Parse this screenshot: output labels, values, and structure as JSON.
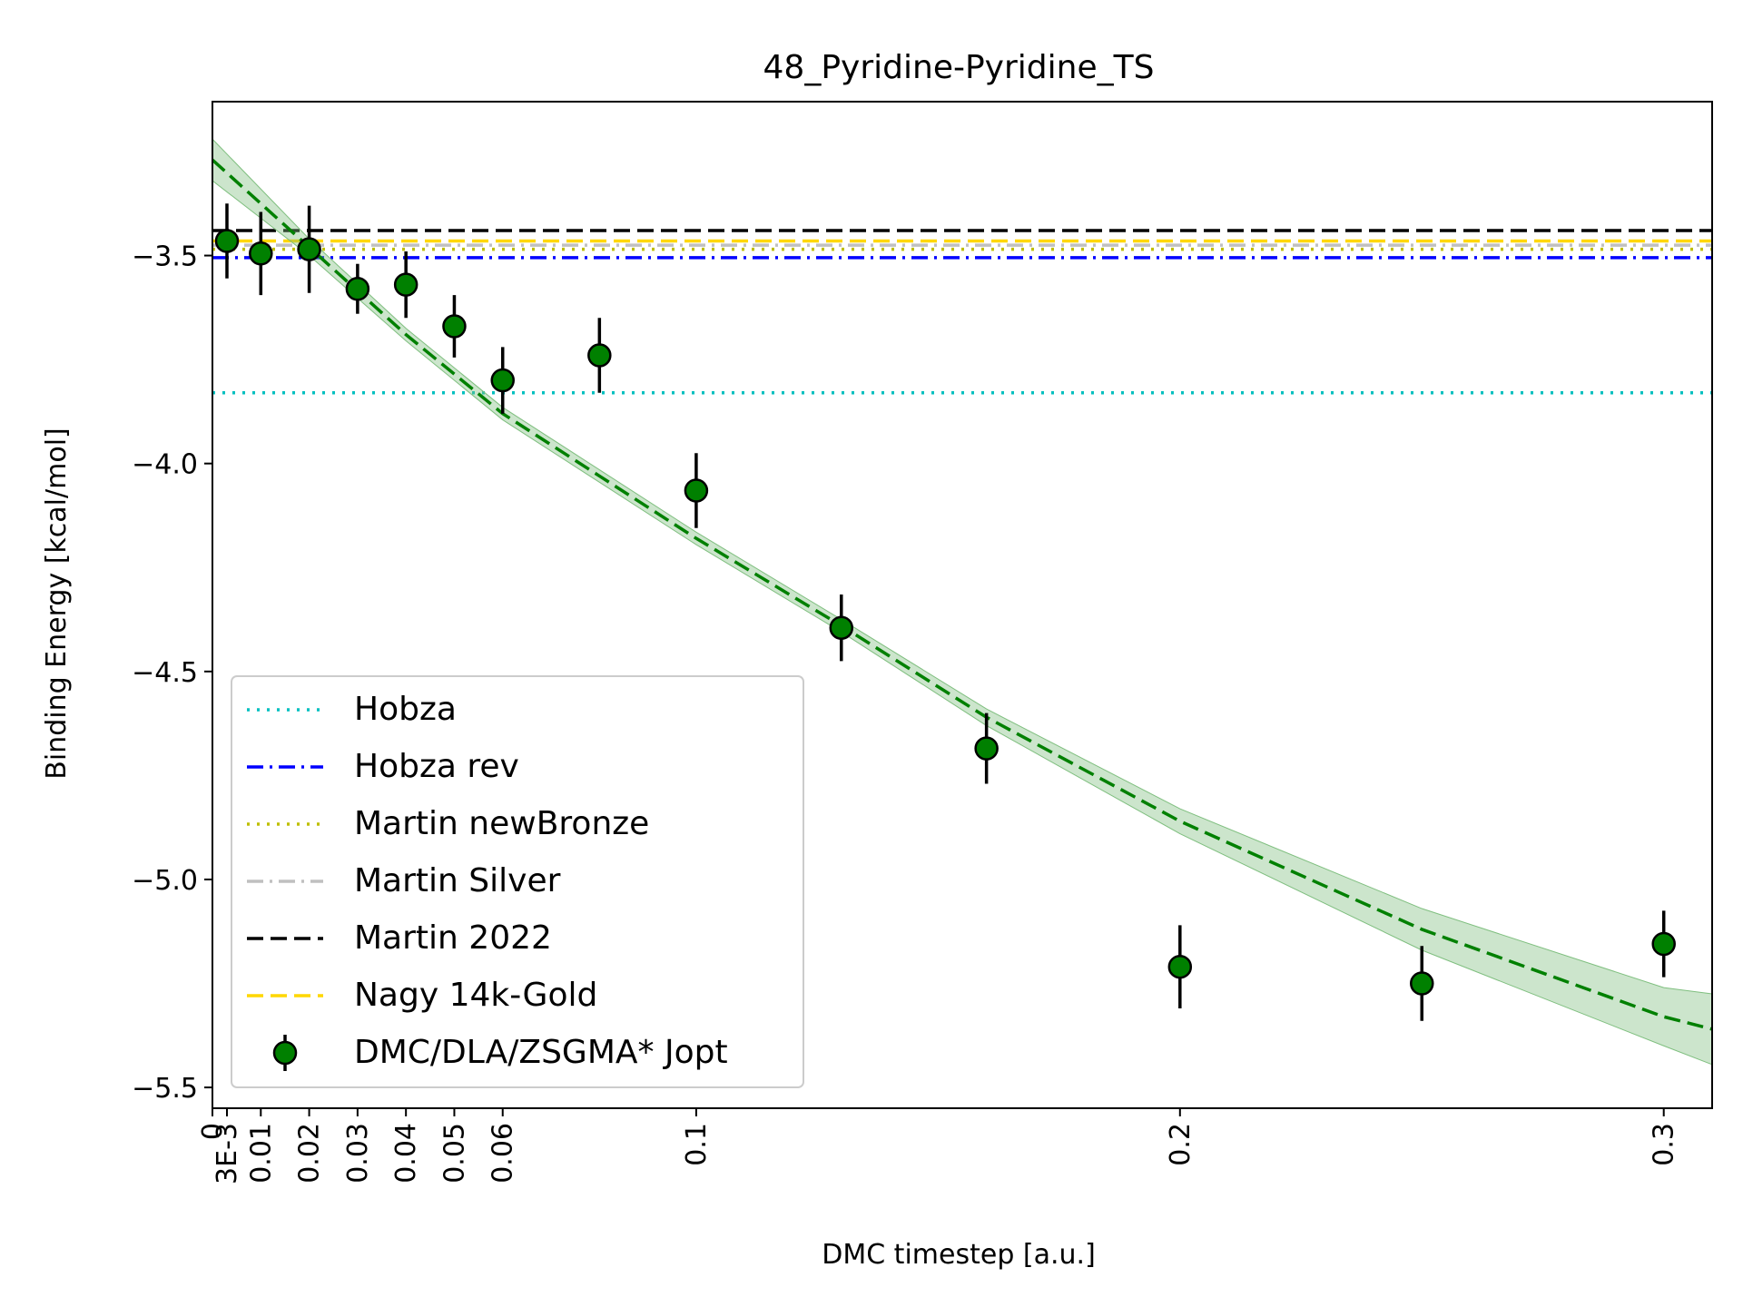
{
  "chart_data": {
    "type": "scatter",
    "title": "48_Pyridine-Pyridine_TS",
    "xlabel": "DMC timestep [a.u.]",
    "ylabel": "Binding Energy [kcal/mol]",
    "xlim": [
      0,
      0.31
    ],
    "ylim": [
      -5.55,
      -3.13
    ],
    "grid": false,
    "legend_position": "lower left",
    "x_ticks": [
      {
        "value": 0,
        "label": "0"
      },
      {
        "value": 0.003,
        "label": "3E-3"
      },
      {
        "value": 0.01,
        "label": "0.01"
      },
      {
        "value": 0.02,
        "label": "0.02"
      },
      {
        "value": 0.03,
        "label": "0.03"
      },
      {
        "value": 0.04,
        "label": "0.04"
      },
      {
        "value": 0.05,
        "label": "0.05"
      },
      {
        "value": 0.06,
        "label": "0.06"
      },
      {
        "value": 0.1,
        "label": "0.1"
      },
      {
        "value": 0.2,
        "label": "0.2"
      },
      {
        "value": 0.3,
        "label": "0.3"
      }
    ],
    "y_ticks": [
      {
        "value": -3.5,
        "label": "−3.5"
      },
      {
        "value": -4.0,
        "label": "−4.0"
      },
      {
        "value": -4.5,
        "label": "−4.5"
      },
      {
        "value": -5.0,
        "label": "−5.0"
      },
      {
        "value": -5.5,
        "label": "−5.5"
      }
    ],
    "reference_lines": [
      {
        "name": "Hobza",
        "value": -3.83,
        "color": "#00bfbf",
        "style": "dotted"
      },
      {
        "name": "Hobza rev",
        "value": -3.505,
        "color": "#0000ff",
        "style": "dashdot"
      },
      {
        "name": "Martin newBronze",
        "value": -3.485,
        "color": "#bfbf00",
        "style": "dotted"
      },
      {
        "name": "Martin Silver",
        "value": -3.475,
        "color": "#c0c0c0",
        "style": "dashdot"
      },
      {
        "name": "Martin 2022",
        "value": -3.44,
        "color": "#000000",
        "style": "dashed"
      },
      {
        "name": "Nagy 14k-Gold",
        "value": -3.465,
        "color": "#ffd700",
        "style": "dashed"
      }
    ],
    "series": [
      {
        "name": "DMC/DLA/ZSGMA* Jopt",
        "color": "#008000",
        "x": [
          0.003,
          0.01,
          0.02,
          0.03,
          0.04,
          0.05,
          0.06,
          0.08,
          0.1,
          0.13,
          0.16,
          0.2,
          0.25,
          0.3
        ],
        "y": [
          -3.465,
          -3.495,
          -3.485,
          -3.58,
          -3.57,
          -3.67,
          -3.8,
          -3.74,
          -4.065,
          -4.395,
          -4.685,
          -5.21,
          -5.25,
          -5.155
        ],
        "yerr": [
          0.09,
          0.1,
          0.105,
          0.06,
          0.08,
          0.075,
          0.08,
          0.09,
          0.09,
          0.08,
          0.085,
          0.1,
          0.09,
          0.08
        ]
      }
    ],
    "fit": {
      "color": "#008000",
      "band_color": "#7fbf7f",
      "x": [
        0,
        0.02,
        0.04,
        0.06,
        0.08,
        0.1,
        0.13,
        0.16,
        0.2,
        0.25,
        0.3,
        0.31
      ],
      "y": [
        -3.27,
        -3.48,
        -3.69,
        -3.88,
        -4.03,
        -4.18,
        -4.39,
        -4.61,
        -4.86,
        -5.12,
        -5.33,
        -5.36
      ],
      "band_halfwidth": [
        0.05,
        0.02,
        0.015,
        0.015,
        0.015,
        0.015,
        0.015,
        0.02,
        0.03,
        0.05,
        0.07,
        0.085
      ]
    }
  }
}
